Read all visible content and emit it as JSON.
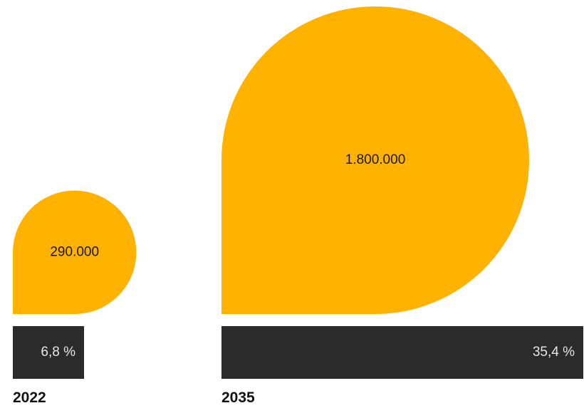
{
  "chart_data": {
    "type": "bar",
    "categories": [
      "2022",
      "2035"
    ],
    "series": [
      {
        "values": [
          290000,
          1800000
        ],
        "labels": [
          "290.000",
          "1.800.000"
        ]
      },
      {
        "values": [
          6.8,
          35.4
        ],
        "labels": [
          "6,8 %",
          "35,4 %"
        ]
      }
    ],
    "colors": {
      "drop": "#FFB300",
      "bar": "#2B2B2B",
      "bar_text": "#E6E6E6",
      "drop_text": "#1A1A1A",
      "year_text": "#111111"
    },
    "grid": false,
    "legend": "none"
  }
}
